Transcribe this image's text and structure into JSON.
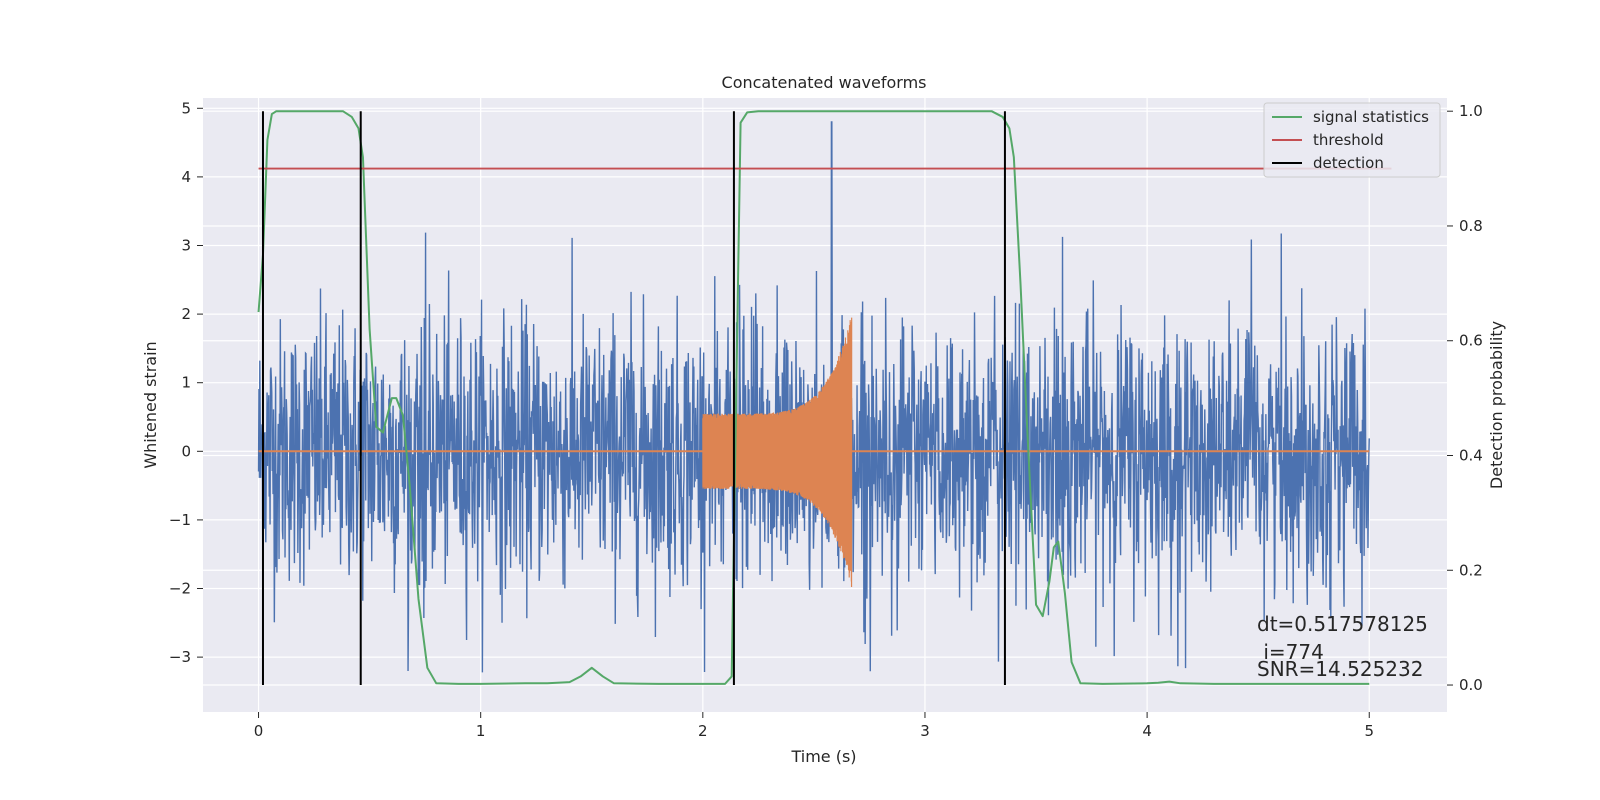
{
  "chart_data": {
    "type": "line",
    "title": "Concatenated waveforms",
    "xlabel": "Time (s)",
    "ylabel": "Whitened strain",
    "y2label": "Detection probability",
    "xlim": [
      -0.25,
      5.35
    ],
    "ylim": [
      -3.8,
      5.15
    ],
    "y2lim": [
      -0.047,
      1.023
    ],
    "x_ticks": [
      "0",
      "1",
      "2",
      "3",
      "4",
      "5"
    ],
    "y_ticks": [
      "5",
      "4",
      "3",
      "2",
      "1",
      "0",
      "−1",
      "−2",
      "−3"
    ],
    "y2_ticks": [
      "1.0",
      "0.8",
      "0.6",
      "0.4",
      "0.2",
      "0.0"
    ],
    "grid": true,
    "legend_position": "top-right",
    "colors": {
      "strain": "#4c72b0",
      "template": "#dd8452",
      "signal_statistics": "#55a868",
      "threshold": "#c44e52",
      "detection": "#000000",
      "background": "#eaeaf2",
      "grid": "#ffffff"
    },
    "series": [
      {
        "name": "signal statistics",
        "axis": "right",
        "x": [
          0.0,
          0.02,
          0.04,
          0.06,
          0.08,
          0.1,
          0.15,
          0.2,
          0.3,
          0.38,
          0.42,
          0.45,
          0.47,
          0.5,
          0.53,
          0.56,
          0.6,
          0.62,
          0.65,
          0.68,
          0.72,
          0.76,
          0.8,
          0.9,
          1.0,
          1.2,
          1.3,
          1.4,
          1.45,
          1.5,
          1.55,
          1.6,
          1.8,
          2.0,
          2.1,
          2.13,
          2.15,
          2.17,
          2.2,
          2.25,
          2.3,
          2.5,
          2.8,
          3.0,
          3.2,
          3.3,
          3.35,
          3.38,
          3.4,
          3.43,
          3.46,
          3.5,
          3.53,
          3.56,
          3.58,
          3.6,
          3.63,
          3.66,
          3.7,
          3.8,
          4.0,
          4.05,
          4.1,
          4.15,
          4.3,
          4.6,
          5.0
        ],
        "values": [
          0.65,
          0.75,
          0.95,
          0.995,
          1.0,
          1.0,
          1.0,
          1.0,
          1.0,
          1.0,
          0.99,
          0.97,
          0.92,
          0.62,
          0.45,
          0.44,
          0.5,
          0.5,
          0.47,
          0.35,
          0.15,
          0.03,
          0.003,
          0.002,
          0.002,
          0.003,
          0.003,
          0.005,
          0.015,
          0.03,
          0.015,
          0.003,
          0.002,
          0.002,
          0.002,
          0.015,
          0.5,
          0.98,
          0.998,
          1.0,
          1.0,
          1.0,
          1.0,
          1.0,
          1.0,
          1.0,
          0.99,
          0.97,
          0.92,
          0.7,
          0.45,
          0.14,
          0.12,
          0.18,
          0.24,
          0.25,
          0.16,
          0.04,
          0.003,
          0.002,
          0.003,
          0.004,
          0.006,
          0.003,
          0.002,
          0.002,
          0.002
        ]
      },
      {
        "name": "threshold",
        "axis": "right",
        "x": [
          0.0,
          5.1
        ],
        "values": [
          0.9,
          0.9
        ]
      }
    ],
    "detections": [
      0.02,
      0.46,
      2.14,
      3.36
    ],
    "detection_label": "detection",
    "strain_noise": {
      "x_range": [
        0.0,
        5.0
      ],
      "amplitude_range": [
        -3.3,
        3.2
      ]
    },
    "strain_peak": {
      "x": 2.58,
      "value": 4.8
    },
    "template_chirp": {
      "x_range": [
        2.0,
        2.67
      ],
      "start_amplitude": 0.55,
      "peak_amplitude": 2.0
    },
    "annotations": [
      "dt=0.517578125",
      " i=774",
      "SNR=14.525232"
    ]
  }
}
